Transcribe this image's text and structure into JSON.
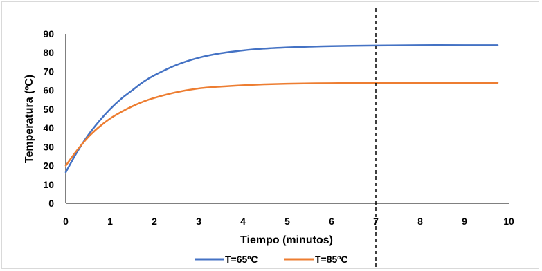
{
  "chart_data": {
    "type": "line",
    "title": "",
    "xlabel": "Tiempo (minutos)",
    "ylabel": "Temperatura (ºC)",
    "xlim": [
      0,
      10
    ],
    "ylim": [
      0,
      90
    ],
    "x_ticks": [
      "0",
      "1",
      "2",
      "3",
      "4",
      "5",
      "6",
      "7",
      "8",
      "9",
      "10"
    ],
    "y_ticks": [
      "0",
      "10",
      "20",
      "30",
      "40",
      "50",
      "60",
      "70",
      "80",
      "90"
    ],
    "grid": false,
    "legend_position": "bottom",
    "vertical_line_x": 7,
    "series": [
      {
        "name": "T=65ºC",
        "color": "#4472c4",
        "x": [
          0,
          0.25,
          0.5,
          0.75,
          1,
          1.25,
          1.5,
          1.75,
          2,
          2.5,
          3,
          3.5,
          4,
          4.5,
          5,
          5.5,
          6,
          7,
          8,
          9,
          9.75
        ],
        "y": [
          16.5,
          27,
          36,
          43.5,
          50,
          55.5,
          60,
          64.5,
          68,
          73.5,
          77.3,
          79.7,
          81.2,
          82.2,
          82.8,
          83.2,
          83.5,
          83.8,
          84,
          84,
          84
        ]
      },
      {
        "name": "T=85ºC",
        "color": "#ed7d31",
        "x": [
          0,
          0.25,
          0.5,
          0.75,
          1,
          1.25,
          1.5,
          1.75,
          2,
          2.5,
          3,
          3.5,
          4,
          4.5,
          5,
          5.5,
          6,
          7,
          8,
          9,
          9.75
        ],
        "y": [
          20,
          28,
          35,
          40.5,
          45,
          48.5,
          51.5,
          54,
          56,
          59,
          61,
          62,
          62.7,
          63.2,
          63.5,
          63.7,
          63.8,
          64,
          64,
          64,
          64
        ]
      }
    ]
  }
}
